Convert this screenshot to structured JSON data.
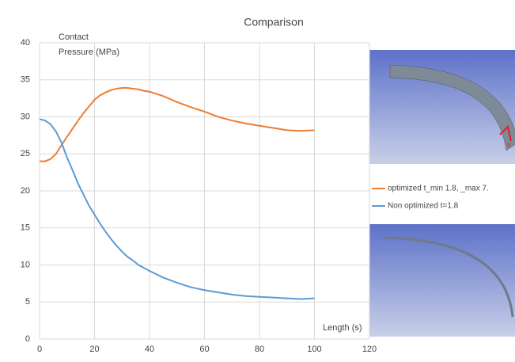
{
  "chart_data": {
    "type": "line",
    "title": "Comparison",
    "y_label": [
      "Contact",
      "Pressure (MPa)"
    ],
    "x_label": "Length (s)",
    "x": [
      0,
      2,
      4,
      6,
      8,
      10,
      12,
      14,
      16,
      18,
      20,
      22,
      24,
      26,
      28,
      30,
      32,
      34,
      36,
      38,
      40,
      45,
      50,
      55,
      60,
      65,
      70,
      75,
      80,
      85,
      90,
      95,
      100
    ],
    "series": [
      {
        "name": "optimized t_min 1.8, _max 7.",
        "color": "#ed7d31",
        "values": [
          24.0,
          24.0,
          24.3,
          25.0,
          26.2,
          27.3,
          28.4,
          29.5,
          30.5,
          31.4,
          32.3,
          32.9,
          33.3,
          33.6,
          33.8,
          33.9,
          33.9,
          33.8,
          33.7,
          33.5,
          33.4,
          32.8,
          32.0,
          31.3,
          30.7,
          30.0,
          29.5,
          29.1,
          28.8,
          28.5,
          28.2,
          28.1,
          28.2
        ]
      },
      {
        "name": "Non optimized t=1.8",
        "color": "#5b9bd5",
        "values": [
          29.7,
          29.5,
          29.0,
          28.0,
          26.5,
          24.5,
          22.8,
          21.0,
          19.5,
          18.0,
          16.8,
          15.6,
          14.5,
          13.5,
          12.6,
          11.8,
          11.1,
          10.6,
          10.0,
          9.6,
          9.2,
          8.3,
          7.6,
          7.0,
          6.6,
          6.3,
          6.0,
          5.8,
          5.7,
          5.6,
          5.5,
          5.4,
          5.5
        ]
      }
    ],
    "xlim": [
      0,
      120
    ],
    "xticks": [
      0,
      20,
      40,
      60,
      80,
      100,
      120
    ],
    "ylim": [
      0,
      40
    ],
    "yticks": [
      0,
      5,
      10,
      15,
      20,
      25,
      30,
      35,
      40
    ],
    "grid": true,
    "annotation": "s"
  }
}
